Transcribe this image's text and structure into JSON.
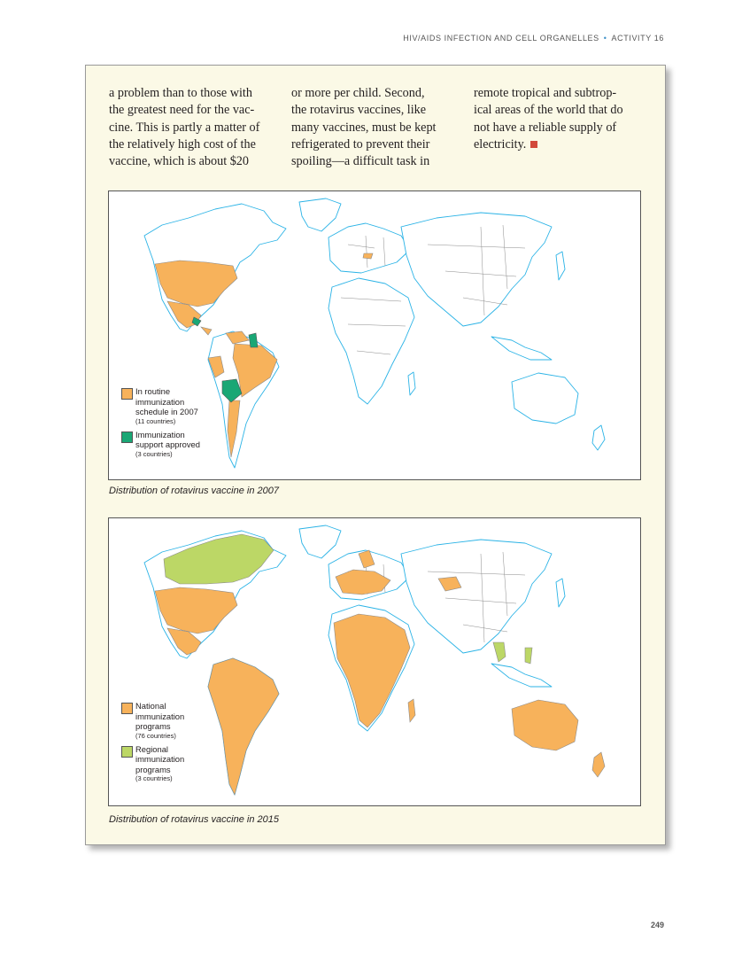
{
  "header": {
    "left": "HIV/AIDS INFECTION AND CELL ORGANELLES",
    "right": "ACTIVITY 16"
  },
  "body_text": {
    "col1": [
      "a problem than to those with",
      "the greatest need for the vac-",
      "cine. This is partly a matter of",
      "the relatively high cost of the",
      "vaccine, which is about $20"
    ],
    "col2": [
      "or more per child. Second,",
      "the rotavirus vaccines, like",
      "many vaccines, must be kept",
      "refrigerated to prevent their",
      "spoiling—a difficult task in"
    ],
    "col3": [
      "remote tropical and subtrop-",
      "ical areas of the world that do",
      "not have a reliable supply of",
      "electricity."
    ]
  },
  "colors": {
    "orange": "#f7b25b",
    "dark_green": "#1aa775",
    "light_green": "#bcd766",
    "coast": "#2bb3e6",
    "border": "#8a8a8a",
    "end_mark": "#d2493a"
  },
  "map_2007": {
    "caption": "Distribution of rotavirus vaccine in 2007",
    "legend": [
      {
        "label": [
          "In routine",
          "immunization",
          "schedule in 2007"
        ],
        "count": "(11 countries)",
        "color": "#f7b25b"
      },
      {
        "label": [
          "Immunization",
          "support approved"
        ],
        "count": "(3 countries)",
        "color": "#1aa775"
      }
    ]
  },
  "map_2015": {
    "caption": "Distribution of rotavirus vaccine in 2015",
    "legend": [
      {
        "label": [
          "National",
          "immunization",
          "programs"
        ],
        "count": "(76 countries)",
        "color": "#f7b25b"
      },
      {
        "label": [
          "Regional",
          "immunization",
          "programs"
        ],
        "count": "(3 countries)",
        "color": "#bcd766"
      }
    ]
  },
  "page_number": "249"
}
